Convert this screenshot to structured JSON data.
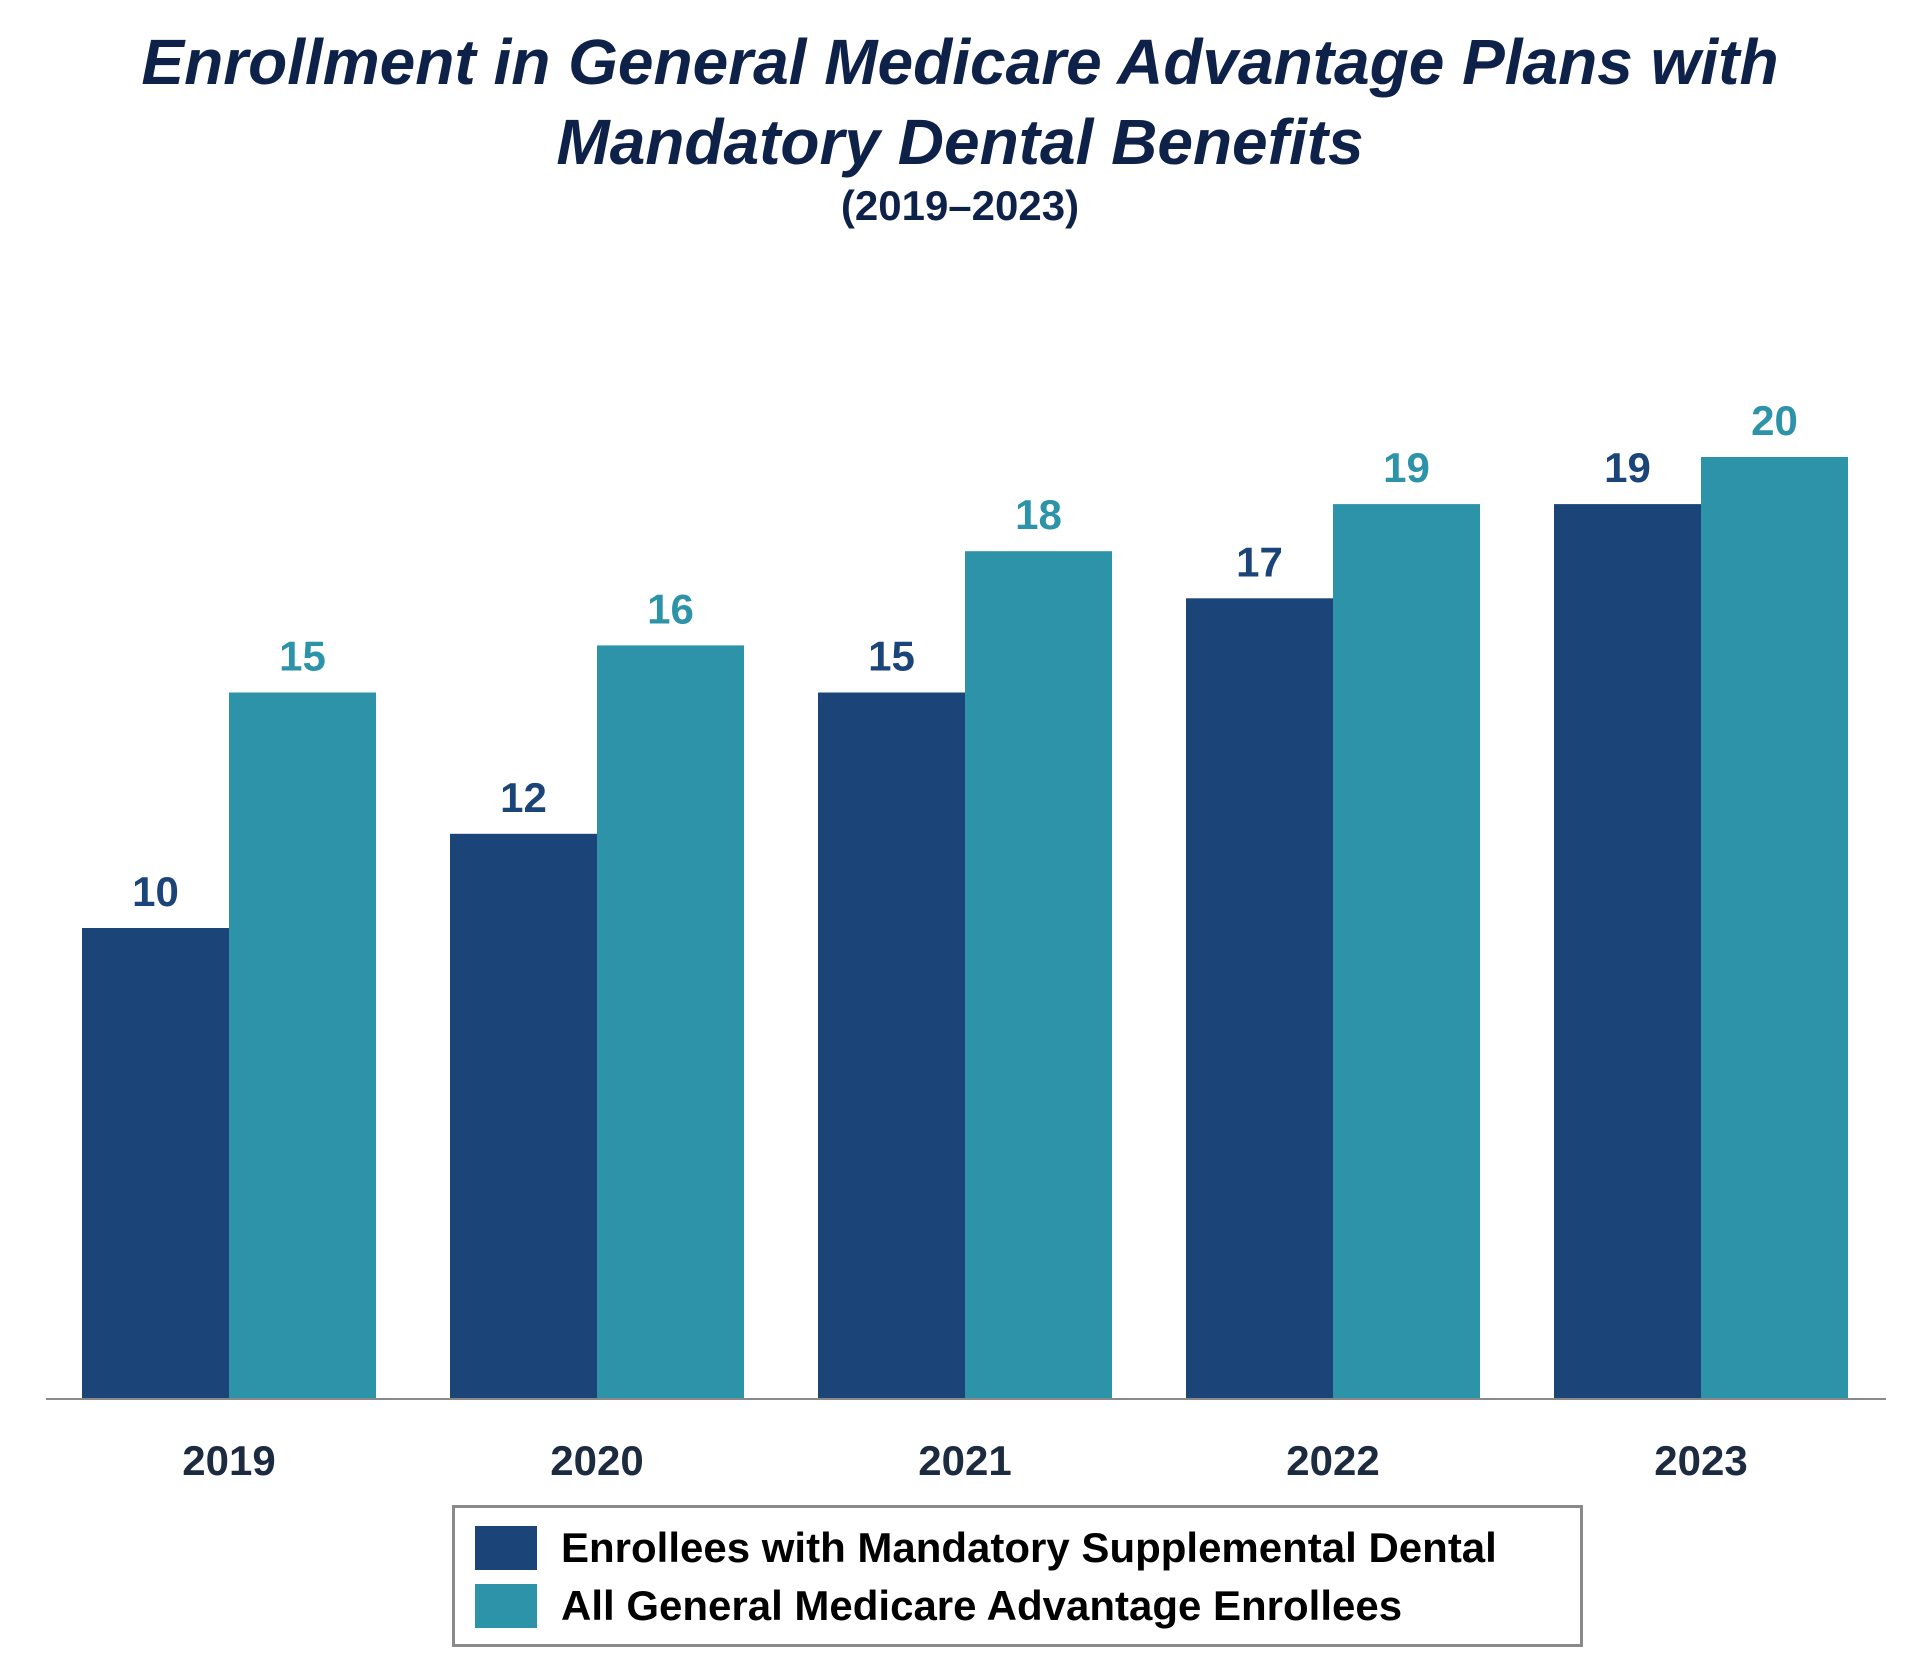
{
  "chart_data": {
    "type": "bar",
    "title_line1": "Enrollment in General Medicare Advantage Plans with",
    "title_line2": "Mandatory Dental Benefits",
    "subtitle": "(2019–2023)",
    "xlabel": "",
    "ylabel": "",
    "categories": [
      "2019",
      "2020",
      "2021",
      "2022",
      "2023"
    ],
    "series": [
      {
        "name": "Enrollees with Mandatory Supplemental Dental",
        "color": "#1b4579",
        "values": [
          10,
          12,
          15,
          17,
          19
        ]
      },
      {
        "name": "All General Medicare Advantage Enrollees",
        "color": "#2d93a9",
        "values": [
          15,
          16,
          18,
          19,
          20
        ]
      }
    ],
    "ylim": [
      0,
      25
    ],
    "grid": false,
    "legend_position": "bottom-center",
    "data_labels": true,
    "axis_line_color": "#8a8a8a",
    "tick_label_color": "#1c2b3f"
  }
}
